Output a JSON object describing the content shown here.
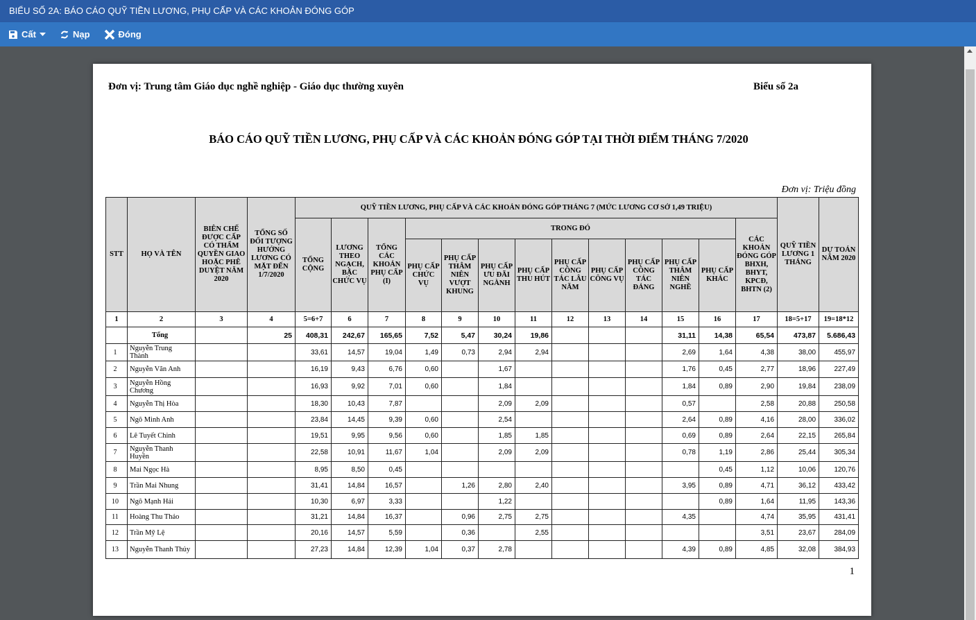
{
  "window": {
    "title": "BIỂU SỐ 2A: BÁO CÁO QUỸ TIỀN LƯƠNG, PHỤ CẤP VÀ CÁC KHOẢN ĐÓNG GÓP"
  },
  "toolbar": {
    "save_label": "Cất",
    "reload_label": "Nạp",
    "close_label": "Đóng"
  },
  "doc": {
    "unit": "Đơn vị: Trung tâm Giáo dục nghề nghiệp - Giáo dục thường xuyên",
    "form_no": "Biểu số 2a",
    "title": "BÁO CÁO QUỸ TIỀN LƯƠNG, PHỤ CẤP VÀ CÁC KHOẢN ĐÓNG GÓP TẠI THỜI ĐIỂM THÁNG 7/2020",
    "money_unit": "Đơn vị: Triệu đồng",
    "page_number": "1"
  },
  "table": {
    "h": {
      "stt": "STT",
      "name": "HỌ VÀ TÊN",
      "c3": "BIÊN CHẾ ĐƯỢC CẤP CÓ THẨM QUYỀN GIAO HOẶC PHÊ DUYỆT NĂM 2020",
      "c4": "TỔNG SỐ ĐỐI TƯỢNG HƯỞNG LƯƠNG CÓ MẶT ĐẾN 1/7/2020",
      "group": "QUỸ TIỀN LƯƠNG, PHỤ CẤP VÀ CÁC KHOẢN ĐÓNG GÓP THÁNG 7 (MỨC LƯƠNG CƠ SỞ 1,49 TRIỆU)",
      "c5": "TỔNG CỘNG",
      "c6": "LƯƠNG THEO NGẠCH, BẬC CHỨC VỤ",
      "c7": "TỔNG CÁC KHOẢN PHỤ CẤP (I)",
      "sub": "TRONG ĐÓ",
      "c8": "PHỤ CẤP CHỨC VỤ",
      "c9": "PHỤ CẤP THÂM NIÊN VƯỢT KHUNG",
      "c10": "PHỤ CẤP ƯU ĐÃI NGÀNH",
      "c11": "PHỤ CẤP THU HÚT",
      "c12": "PHỤ CẤP CÔNG TÁC LÂU NĂM",
      "c13": "PHỤ CẤP CÔNG VỤ",
      "c14": "PHỤ CẤP CÔNG TÁC ĐẢNG",
      "c15": "PHỤ CẤP THÂM NIÊN NGHỀ",
      "c16": "PHỤ CẤP KHÁC",
      "c17": "CÁC KHOẢN ĐÓNG GÓP BHXH, BHYT, KPCĐ, BHTN (2)",
      "c18": "QUỸ TIỀN LƯƠNG 1 THÁNG",
      "c19": "DỰ TOÁN NĂM 2020"
    },
    "col_numbers": [
      "1",
      "2",
      "3",
      "4",
      "5=6+7",
      "6",
      "7",
      "8",
      "9",
      "10",
      "11",
      "12",
      "13",
      "14",
      "15",
      "16",
      "17",
      "18=5+17",
      "19=18*12"
    ],
    "total": [
      "",
      "Tổng",
      "",
      "25",
      "408,31",
      "242,67",
      "165,65",
      "7,52",
      "5,47",
      "30,24",
      "19,86",
      "",
      "",
      "",
      "31,11",
      "14,38",
      "65,54",
      "473,87",
      "5.686,43"
    ],
    "rows": [
      [
        "1",
        "Nguyễn Trung Thành",
        "",
        "",
        "33,61",
        "14,57",
        "19,04",
        "1,49",
        "0,73",
        "2,94",
        "2,94",
        "",
        "",
        "",
        "2,69",
        "1,64",
        "4,38",
        "38,00",
        "455,97"
      ],
      [
        "2",
        "Nguyễn Văn Anh",
        "",
        "",
        "16,19",
        "9,43",
        "6,76",
        "0,60",
        "",
        "1,67",
        "",
        "",
        "",
        "",
        "1,76",
        "0,45",
        "2,77",
        "18,96",
        "227,49"
      ],
      [
        "3",
        "Nguyễn Hồng Chương",
        "",
        "",
        "16,93",
        "9,92",
        "7,01",
        "0,60",
        "",
        "1,84",
        "",
        "",
        "",
        "",
        "1,84",
        "0,89",
        "2,90",
        "19,84",
        "238,09"
      ],
      [
        "4",
        "Nguyễn Thị Hòa",
        "",
        "",
        "18,30",
        "10,43",
        "7,87",
        "",
        "",
        "2,09",
        "2,09",
        "",
        "",
        "",
        "0,57",
        "",
        "2,58",
        "20,88",
        "250,58"
      ],
      [
        "5",
        "Ngô Minh Anh",
        "",
        "",
        "23,84",
        "14,45",
        "9,39",
        "0,60",
        "",
        "2,54",
        "",
        "",
        "",
        "",
        "2,64",
        "0,89",
        "4,16",
        "28,00",
        "336,02"
      ],
      [
        "6",
        "Lê Tuyết Chinh",
        "",
        "",
        "19,51",
        "9,95",
        "9,56",
        "0,60",
        "",
        "1,85",
        "1,85",
        "",
        "",
        "",
        "0,69",
        "0,89",
        "2,64",
        "22,15",
        "265,84"
      ],
      [
        "7",
        "Nguyễn Thanh Huyền",
        "",
        "",
        "22,58",
        "10,91",
        "11,67",
        "1,04",
        "",
        "2,09",
        "2,09",
        "",
        "",
        "",
        "0,78",
        "1,19",
        "2,86",
        "25,44",
        "305,34"
      ],
      [
        "8",
        "Mai Ngọc Hà",
        "",
        "",
        "8,95",
        "8,50",
        "0,45",
        "",
        "",
        "",
        "",
        "",
        "",
        "",
        "",
        "0,45",
        "1,12",
        "10,06",
        "120,76"
      ],
      [
        "9",
        "Trần Mai Nhung",
        "",
        "",
        "31,41",
        "14,84",
        "16,57",
        "",
        "1,26",
        "2,80",
        "2,40",
        "",
        "",
        "",
        "3,95",
        "0,89",
        "4,71",
        "36,12",
        "433,42"
      ],
      [
        "10",
        "Ngô Mạnh Hải",
        "",
        "",
        "10,30",
        "6,97",
        "3,33",
        "",
        "",
        "1,22",
        "",
        "",
        "",
        "",
        "",
        "0,89",
        "1,64",
        "11,95",
        "143,36"
      ],
      [
        "11",
        "Hoàng Thu Thảo",
        "",
        "",
        "31,21",
        "14,84",
        "16,37",
        "",
        "0,96",
        "2,75",
        "2,75",
        "",
        "",
        "",
        "4,35",
        "",
        "4,74",
        "35,95",
        "431,41"
      ],
      [
        "12",
        "Trần Mỹ Lệ",
        "",
        "",
        "20,16",
        "14,57",
        "5,59",
        "",
        "0,36",
        "",
        "2,55",
        "",
        "",
        "",
        "",
        "",
        "3,51",
        "23,67",
        "284,09"
      ],
      [
        "13",
        "Nguyễn Thanh Thủy",
        "",
        "",
        "27,23",
        "14,84",
        "12,39",
        "1,04",
        "0,37",
        "2,78",
        "",
        "",
        "",
        "",
        "4,39",
        "0,89",
        "4,85",
        "32,08",
        "384,93"
      ]
    ]
  },
  "colors": {
    "titlebar": "#2b5ca6",
    "toolbar": "#3276c3",
    "viewer_bg": "#525659",
    "header_fill": "#d9d9d9"
  }
}
